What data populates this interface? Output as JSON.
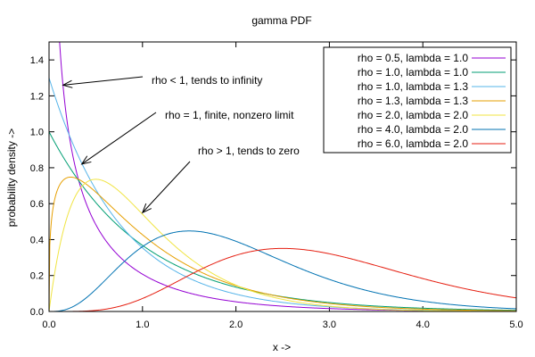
{
  "chart_data": {
    "type": "line",
    "title": "gamma PDF",
    "xlabel": "x ->",
    "ylabel": "probability density ->",
    "xlim": [
      0.0,
      5.0
    ],
    "ylim": [
      0.0,
      1.5
    ],
    "x_ticks": [
      "0.0",
      "1.0",
      "2.0",
      "3.0",
      "4.0",
      "5.0"
    ],
    "y_ticks": [
      "0.0",
      "0.2",
      "0.4",
      "0.6",
      "0.8",
      "1.0",
      "1.2",
      "1.4"
    ],
    "legend_position": "top-right",
    "grid": false,
    "series": [
      {
        "name": "rho = 0.5, lambda = 1.0",
        "rho": 0.5,
        "lambda": 1.0,
        "color": "#9400d3"
      },
      {
        "name": "rho = 1.0, lambda = 1.0",
        "rho": 1.0,
        "lambda": 1.0,
        "color": "#009e73"
      },
      {
        "name": "rho = 1.0, lambda = 1.3",
        "rho": 1.0,
        "lambda": 1.3,
        "color": "#56b4e9"
      },
      {
        "name": "rho = 1.3, lambda = 1.3",
        "rho": 1.3,
        "lambda": 1.3,
        "color": "#e69f00"
      },
      {
        "name": "rho = 2.0, lambda = 2.0",
        "rho": 2.0,
        "lambda": 2.0,
        "color": "#f0e442"
      },
      {
        "name": "rho = 4.0, lambda = 2.0",
        "rho": 4.0,
        "lambda": 2.0,
        "color": "#0072b2"
      },
      {
        "name": "rho = 6.0, lambda = 2.0",
        "rho": 6.0,
        "lambda": 2.0,
        "color": "#e51e10"
      }
    ],
    "annotations": [
      {
        "text": "rho < 1, tends to infinity",
        "point_x": 0.15,
        "point_y": 1.26
      },
      {
        "text": "rho = 1, finite, nonzero limit",
        "point_x": 0.35,
        "point_y": 0.82
      },
      {
        "text": "rho > 1, tends to zero",
        "point_x": 1.0,
        "point_y": 0.55
      }
    ]
  }
}
